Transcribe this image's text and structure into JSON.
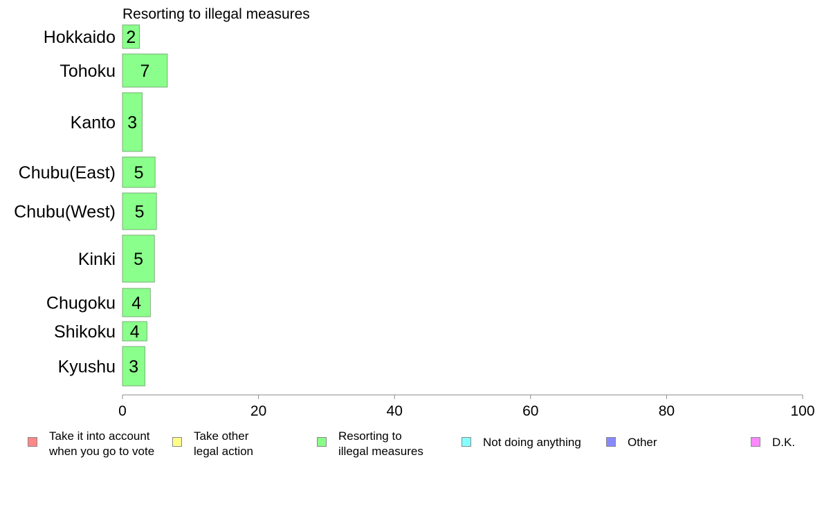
{
  "chart_data": {
    "type": "bar",
    "orientation": "horizontal",
    "title": "Resorting to illegal measures",
    "categories": [
      "Hokkaido",
      "Tohoku",
      "Kanto",
      "Chubu(East)",
      "Chubu(West)",
      "Kinki",
      "Chugoku",
      "Shikoku",
      "Kyushu"
    ],
    "values": [
      2.5,
      6.6,
      2.9,
      4.8,
      5.0,
      4.7,
      4.1,
      3.6,
      3.3
    ],
    "value_labels": [
      "2",
      "7",
      "3",
      "5",
      "5",
      "5",
      "4",
      "4",
      "3"
    ],
    "xlim": [
      0,
      100
    ],
    "xticks": [
      "0",
      "20",
      "40",
      "60",
      "80",
      "100"
    ],
    "bar_color": "#8bff8b",
    "legend_position": "bottom",
    "legend": [
      {
        "label": "Take it into account\nwhen you go to vote",
        "color": "#ff8888"
      },
      {
        "label": "Take other\nlegal action",
        "color": "#ffff88"
      },
      {
        "label": "Resorting to\nillegal measures",
        "color": "#88ff88"
      },
      {
        "label": "Not doing anything",
        "color": "#88ffff"
      },
      {
        "label": "Other",
        "color": "#8888ff"
      },
      {
        "label": "D.K.",
        "color": "#ff88ff"
      }
    ]
  }
}
